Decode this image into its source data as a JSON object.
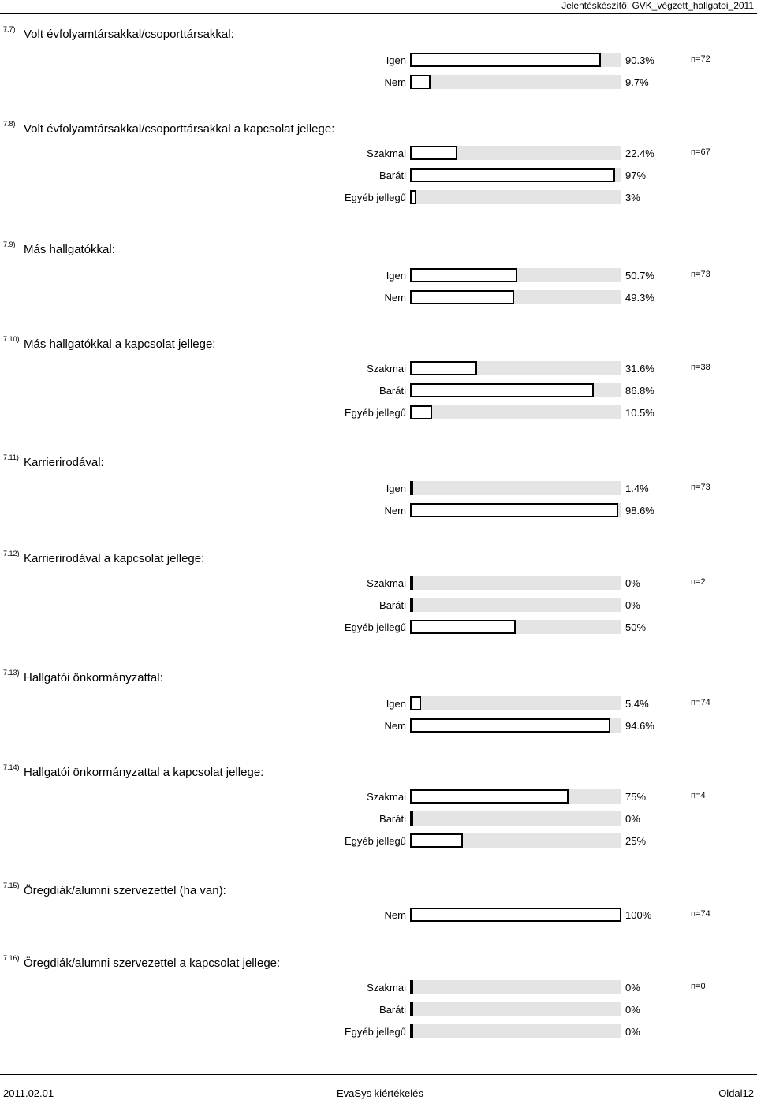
{
  "header": {
    "title": "Jelentéskészítő, GVK_végzett_hallgatoi_2011"
  },
  "questions": [
    {
      "num": "7.7)",
      "title": "Volt évfolyamtársakkal/csoporttársakkal:",
      "n": "n=72",
      "rows": [
        {
          "label": "Igen",
          "pct": "90.3%",
          "value": 90.3
        },
        {
          "label": "Nem",
          "pct": "9.7%",
          "value": 9.7
        }
      ]
    },
    {
      "num": "7.8)",
      "title": "Volt évfolyamtársakkal/csoporttársakkal a kapcsolat jellege:",
      "n": "n=67",
      "rows": [
        {
          "label": "Szakmai",
          "pct": "22.4%",
          "value": 22.4
        },
        {
          "label": "Baráti",
          "pct": "97%",
          "value": 97
        },
        {
          "label": "Egyéb jellegű",
          "pct": "3%",
          "value": 3
        }
      ]
    },
    {
      "num": "7.9)",
      "title": "Más hallgatókkal:",
      "n": "n=73",
      "rows": [
        {
          "label": "Igen",
          "pct": "50.7%",
          "value": 50.7
        },
        {
          "label": "Nem",
          "pct": "49.3%",
          "value": 49.3
        }
      ]
    },
    {
      "num": "7.10)",
      "title": "Más hallgatókkal a kapcsolat jellege:",
      "n": "n=38",
      "rows": [
        {
          "label": "Szakmai",
          "pct": "31.6%",
          "value": 31.6
        },
        {
          "label": "Baráti",
          "pct": "86.8%",
          "value": 86.8
        },
        {
          "label": "Egyéb jellegű",
          "pct": "10.5%",
          "value": 10.5
        }
      ]
    },
    {
      "num": "7.11)",
      "title": "Karrierirodával:",
      "n": "n=73",
      "rows": [
        {
          "label": "Igen",
          "pct": "1.4%",
          "value": 1.4
        },
        {
          "label": "Nem",
          "pct": "98.6%",
          "value": 98.6
        }
      ]
    },
    {
      "num": "7.12)",
      "title": "Karrierirodával a kapcsolat jellege:",
      "n": "n=2",
      "rows": [
        {
          "label": "Szakmai",
          "pct": "0%",
          "value": 0
        },
        {
          "label": "Baráti",
          "pct": "0%",
          "value": 0
        },
        {
          "label": "Egyéb jellegű",
          "pct": "50%",
          "value": 50
        }
      ]
    },
    {
      "num": "7.13)",
      "title": "Hallgatói önkormányzattal:",
      "n": "n=74",
      "rows": [
        {
          "label": "Igen",
          "pct": "5.4%",
          "value": 5.4
        },
        {
          "label": "Nem",
          "pct": "94.6%",
          "value": 94.6
        }
      ]
    },
    {
      "num": "7.14)",
      "title": "Hallgatói önkormányzattal a kapcsolat jellege:",
      "n": "n=4",
      "rows": [
        {
          "label": "Szakmai",
          "pct": "75%",
          "value": 75
        },
        {
          "label": "Baráti",
          "pct": "0%",
          "value": 0
        },
        {
          "label": "Egyéb jellegű",
          "pct": "25%",
          "value": 25
        }
      ]
    },
    {
      "num": "7.15)",
      "title": "Öregdiák/alumni szervezettel (ha van):",
      "n": "n=74",
      "rows": [
        {
          "label": "Nem",
          "pct": "100%",
          "value": 100
        }
      ]
    },
    {
      "num": "7.16)",
      "title": "Öregdiák/alumni szervezettel a kapcsolat jellege:",
      "n": "n=0",
      "rows": [
        {
          "label": "Szakmai",
          "pct": "0%",
          "value": 0
        },
        {
          "label": "Baráti",
          "pct": "0%",
          "value": 0
        },
        {
          "label": "Egyéb jellegű",
          "pct": "0%",
          "value": 0
        }
      ]
    }
  ],
  "footer": {
    "date": "2011.02.01",
    "center": "EvaSys kiértékelés",
    "page": "Oldal12"
  }
}
